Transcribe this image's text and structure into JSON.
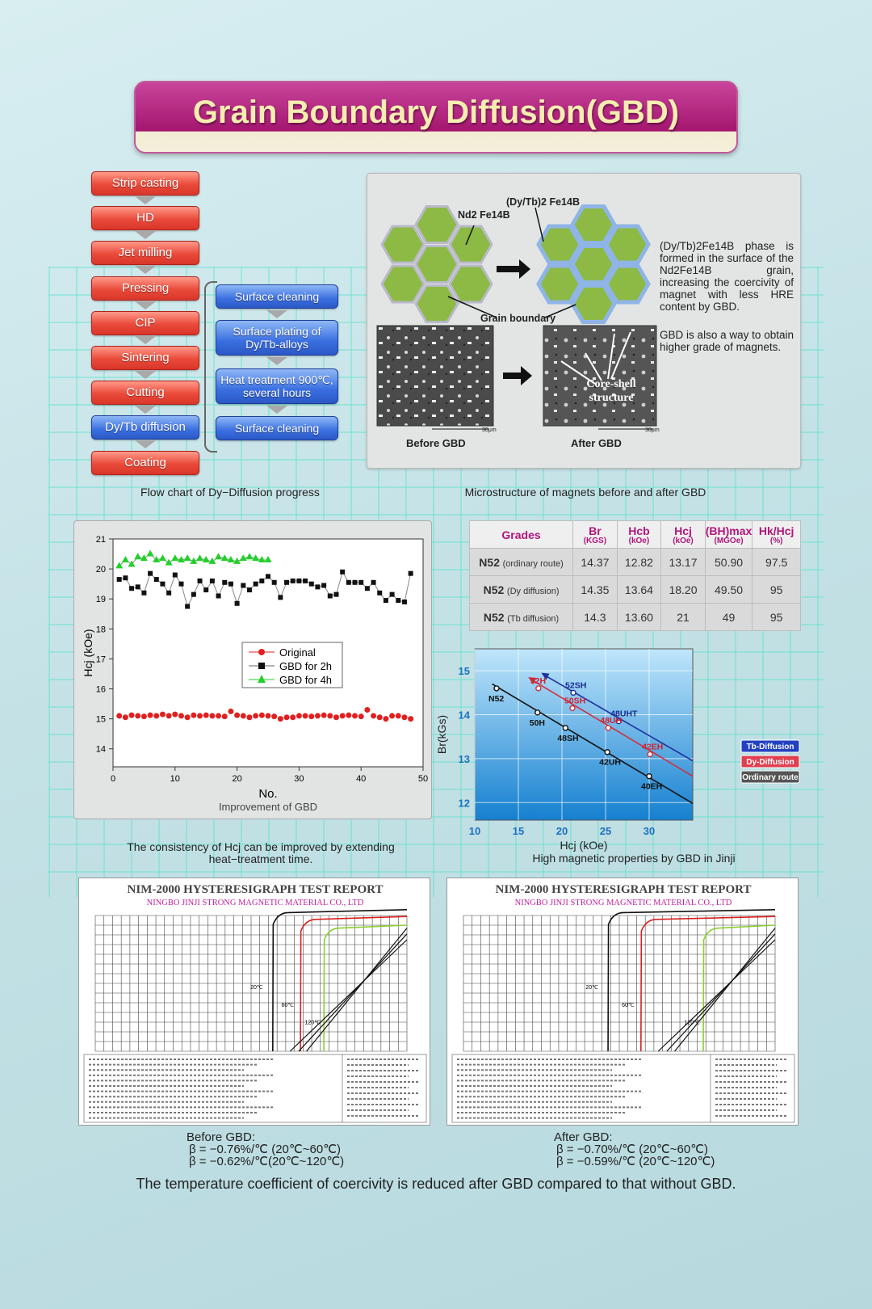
{
  "title": "Grain Boundary Diffusion(GBD)",
  "flow": {
    "steps": [
      "Strip casting",
      "HD",
      "Jet milling",
      "Pressing",
      "CIP",
      "Sintering",
      "Cutting",
      "Dy/Tb diffusion",
      "Coating"
    ],
    "sub_steps": [
      "Surface cleaning",
      "Surface plating of Dy/Tb-alloys",
      "Heat treatment 900℃, several hours",
      "Surface cleaning"
    ],
    "caption": "Flow chart of Dy−Diffusion progress",
    "colors": {
      "red": "#e8453a",
      "blue": "#3a6fe0"
    }
  },
  "micro": {
    "label_ndfeb": "Nd2 Fe14B",
    "label_dytb": "(Dy/Tb)2 Fe14B",
    "label_grain_boundary": "Grain boundary",
    "label_core_shell": "Core-shell structure",
    "label_before": "Before GBD",
    "label_after": "After GBD",
    "scale_label": "30μm",
    "text1": "(Dy/Tb)2Fe14B phase is formed in the surface of the Nd2Fe14B grain, increasing the coercivity of magnet with less HRE content by GBD.",
    "text2": "GBD is also a way to obtain higher grade of magnets.",
    "caption": "Microstructure of magnets before and after GBD"
  },
  "hcj_chart": {
    "caption": "The consistency of  Hcj can be improved by extending heat−treatment time.",
    "chart_data": {
      "type": "scatter",
      "xlabel": "No.",
      "ylabel": "Hcj (kOe)",
      "subtitle": "Improvement of GBD",
      "xlim": [
        0,
        50
      ],
      "ylim": [
        13.4,
        21
      ],
      "xticks": [
        0,
        10,
        20,
        30,
        40,
        50
      ],
      "yticks": [
        14,
        15,
        16,
        17,
        18,
        19,
        20,
        21
      ],
      "legend_position": "center",
      "series": [
        {
          "name": "Original",
          "color": "#e02020",
          "marker": "circle",
          "x": [
            1,
            2,
            3,
            4,
            5,
            6,
            7,
            8,
            9,
            10,
            11,
            12,
            13,
            14,
            15,
            16,
            17,
            18,
            19,
            20,
            21,
            22,
            23,
            24,
            25,
            26,
            27,
            28,
            29,
            30,
            31,
            32,
            33,
            34,
            35,
            36,
            37,
            38,
            39,
            40,
            41,
            42,
            43,
            44,
            45,
            46,
            47,
            48
          ],
          "y": [
            15.1,
            15.05,
            15.12,
            15.1,
            15.08,
            15.12,
            15.1,
            15.15,
            15.1,
            15.15,
            15.1,
            15.05,
            15.12,
            15.1,
            15.12,
            15.1,
            15.1,
            15.08,
            15.25,
            15.12,
            15.1,
            15.05,
            15.1,
            15.12,
            15.1,
            15.08,
            15.0,
            15.05,
            15.05,
            15.1,
            15.1,
            15.08,
            15.1,
            15.12,
            15.1,
            15.05,
            15.1,
            15.12,
            15.1,
            15.08,
            15.3,
            15.1,
            15.05,
            15.0,
            15.1,
            15.1,
            15.05,
            15.0
          ]
        },
        {
          "name": "GBD for 2h",
          "color": "#111111",
          "marker": "square",
          "x": [
            1,
            2,
            3,
            4,
            5,
            6,
            7,
            8,
            9,
            10,
            11,
            12,
            13,
            14,
            15,
            16,
            17,
            18,
            19,
            20,
            21,
            22,
            23,
            24,
            25,
            26,
            27,
            28,
            29,
            30,
            31,
            32,
            33,
            34,
            35,
            36,
            37,
            38,
            39,
            40,
            41,
            42,
            43,
            44,
            45,
            46,
            47,
            48
          ],
          "y": [
            19.65,
            19.7,
            19.35,
            19.4,
            19.2,
            19.85,
            19.65,
            19.5,
            19.2,
            19.8,
            19.5,
            18.75,
            19.15,
            19.6,
            19.3,
            19.6,
            19.1,
            19.55,
            19.5,
            18.85,
            19.45,
            19.3,
            19.5,
            19.6,
            19.75,
            19.55,
            19.05,
            19.55,
            19.6,
            19.6,
            19.6,
            19.5,
            19.4,
            19.45,
            19.1,
            19.15,
            19.9,
            19.55,
            19.55,
            19.55,
            19.35,
            19.55,
            19.2,
            18.95,
            19.15,
            18.95,
            18.9,
            19.85
          ]
        },
        {
          "name": "GBD for 4h",
          "color": "#22d02a",
          "marker": "triangle",
          "x": [
            1,
            2,
            3,
            4,
            5,
            6,
            7,
            8,
            9,
            10,
            11,
            12,
            13,
            14,
            15,
            16,
            17,
            18,
            19,
            20,
            21,
            22,
            23,
            24,
            25
          ],
          "y": [
            20.1,
            20.3,
            20.15,
            20.4,
            20.35,
            20.5,
            20.3,
            20.35,
            20.2,
            20.35,
            20.3,
            20.35,
            20.25,
            20.35,
            20.3,
            20.25,
            20.4,
            20.35,
            20.3,
            20.25,
            20.35,
            20.4,
            20.35,
            20.3,
            20.3
          ]
        }
      ]
    }
  },
  "table": {
    "headers": [
      {
        "main": "Grades",
        "sub": ""
      },
      {
        "main": "Br",
        "sub": "(KGS)"
      },
      {
        "main": "Hcb",
        "sub": "(kOe)"
      },
      {
        "main": "Hcj",
        "sub": "(kOe)"
      },
      {
        "main": "(BH)max",
        "sub": "(MGOe)"
      },
      {
        "main": "Hk/Hcj",
        "sub": "(%)"
      }
    ],
    "rows": [
      {
        "grade": "N52",
        "note": "(ordinary route)",
        "values": [
          "14.37",
          "12.82",
          "13.17",
          "50.90",
          "97.5"
        ]
      },
      {
        "grade": "N52",
        "note": "(Dy diffusion)",
        "values": [
          "14.35",
          "13.64",
          "18.20",
          "49.50",
          "95"
        ]
      },
      {
        "grade": "N52",
        "note": "(Tb diffusion)",
        "values": [
          "14.3",
          "13.60",
          "21",
          "49",
          "95"
        ]
      }
    ]
  },
  "grade_chart": {
    "caption": "High magnetic properties by GBD in Jinji",
    "chart_data": {
      "type": "line",
      "xlabel": "Hcj (kOe)",
      "ylabel": "Br(kGs)",
      "xlim": [
        10,
        35
      ],
      "ylim": [
        11.6,
        15.5
      ],
      "xticks": [
        10,
        15,
        20,
        25,
        30
      ],
      "yticks": [
        12,
        13,
        14,
        15
      ],
      "series": [
        {
          "name": "Tb-Diffusion",
          "color": "#2030a0",
          "x": [
            18,
            35
          ],
          "y": [
            14.9,
            12.95
          ],
          "points": [
            {
              "x": 21.3,
              "y": 14.5,
              "label": "52SH"
            },
            {
              "x": 26.5,
              "y": 13.85,
              "label": "48UHT"
            }
          ]
        },
        {
          "name": "Dy-Diffusion",
          "color": "#d03040",
          "x": [
            16.5,
            35
          ],
          "y": [
            14.8,
            12.6
          ],
          "points": [
            {
              "x": 17.3,
              "y": 14.6,
              "label": "52H"
            },
            {
              "x": 21.2,
              "y": 14.15,
              "label": "50SH"
            },
            {
              "x": 25.3,
              "y": 13.7,
              "label": "48UH"
            },
            {
              "x": 30.1,
              "y": 13.1,
              "label": "42EH"
            }
          ]
        },
        {
          "name": "Ordinary route",
          "color": "#111111",
          "x": [
            12,
            35
          ],
          "y": [
            14.7,
            11.98
          ],
          "points": [
            {
              "x": 12.5,
              "y": 14.6,
              "label": "N52"
            },
            {
              "x": 17.2,
              "y": 14.05,
              "label": "50H"
            },
            {
              "x": 20.4,
              "y": 13.7,
              "label": "48SH"
            },
            {
              "x": 25.2,
              "y": 13.15,
              "label": "42UH"
            },
            {
              "x": 30,
              "y": 12.6,
              "label": "40EH"
            }
          ]
        }
      ],
      "legend": [
        "Tb-Diffusion",
        "Dy-Diffusion",
        "Ordinary route"
      ]
    }
  },
  "reports": [
    {
      "title": "NIM-2000 HYSTERESIGRAPH TEST REPORT",
      "company": "NINGBO JINJI STRONG MAGNETIC MATERIAL CO., LTD",
      "curve_cross": [
        15.5,
        12.3,
        9.6
      ],
      "temps": [
        "20℃",
        "60℃",
        "120℃"
      ],
      "caption_title": "Before GBD:",
      "beta1": "β = −0.76%/℃ (20℃~60℃)",
      "beta2": "β = −0.62%/℃(20℃~120℃)"
    },
    {
      "title": "NIM-2000 HYSTERESIGRAPH TEST REPORT",
      "company": "NINGBO JINJI STRONG MAGNETIC MATERIAL CO., LTD",
      "curve_cross": [
        19.3,
        15.5,
        8.3
      ],
      "temps": [
        "20℃",
        "60℃",
        "120℃"
      ],
      "caption_title": "After GBD:",
      "beta1": "β = −0.70%/℃ (20℃~60℃)",
      "beta2": "β = −0.59%/℃ (20℃~120℃)"
    }
  ],
  "conclusion": "The temperature coefficient  of  coercivity is reduced after  GBD compared to that without GBD."
}
